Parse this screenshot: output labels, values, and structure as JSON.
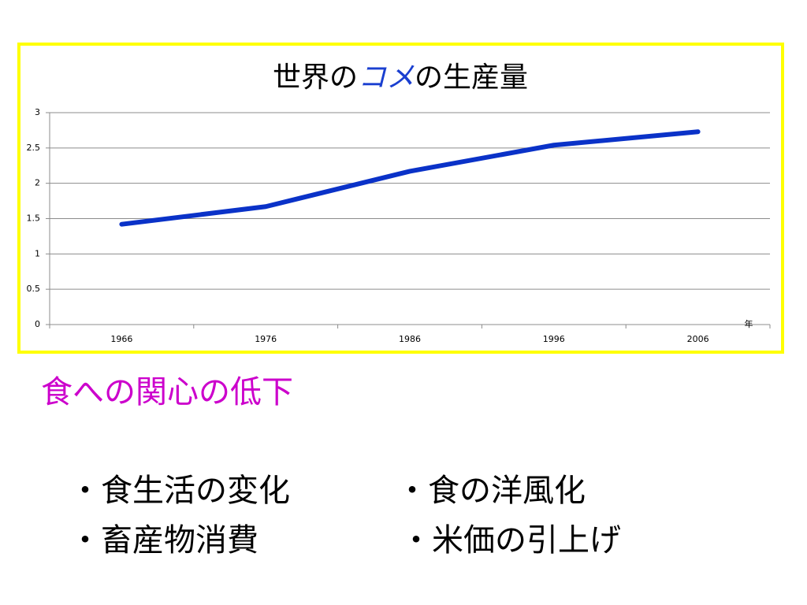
{
  "chart_data": {
    "type": "line",
    "title_parts": [
      "世界の",
      "コメ",
      "の生産量"
    ],
    "categories": [
      "1966",
      "1976",
      "1986",
      "1996",
      "2006"
    ],
    "series": [
      {
        "color": "#0a32c8",
        "values": [
          1.42,
          1.67,
          2.17,
          2.54,
          2.73
        ]
      }
    ],
    "ylim": [
      0,
      3
    ],
    "yticks": [
      0,
      0.5,
      1,
      1.5,
      2,
      2.5,
      3
    ],
    "grid": true,
    "x_label": "年"
  },
  "heading": "食への関心の低下",
  "bullets": [
    [
      "・食生活の変化",
      "・食の洋風化"
    ],
    [
      "・畜産物消費",
      "・米価の引上げ"
    ]
  ]
}
